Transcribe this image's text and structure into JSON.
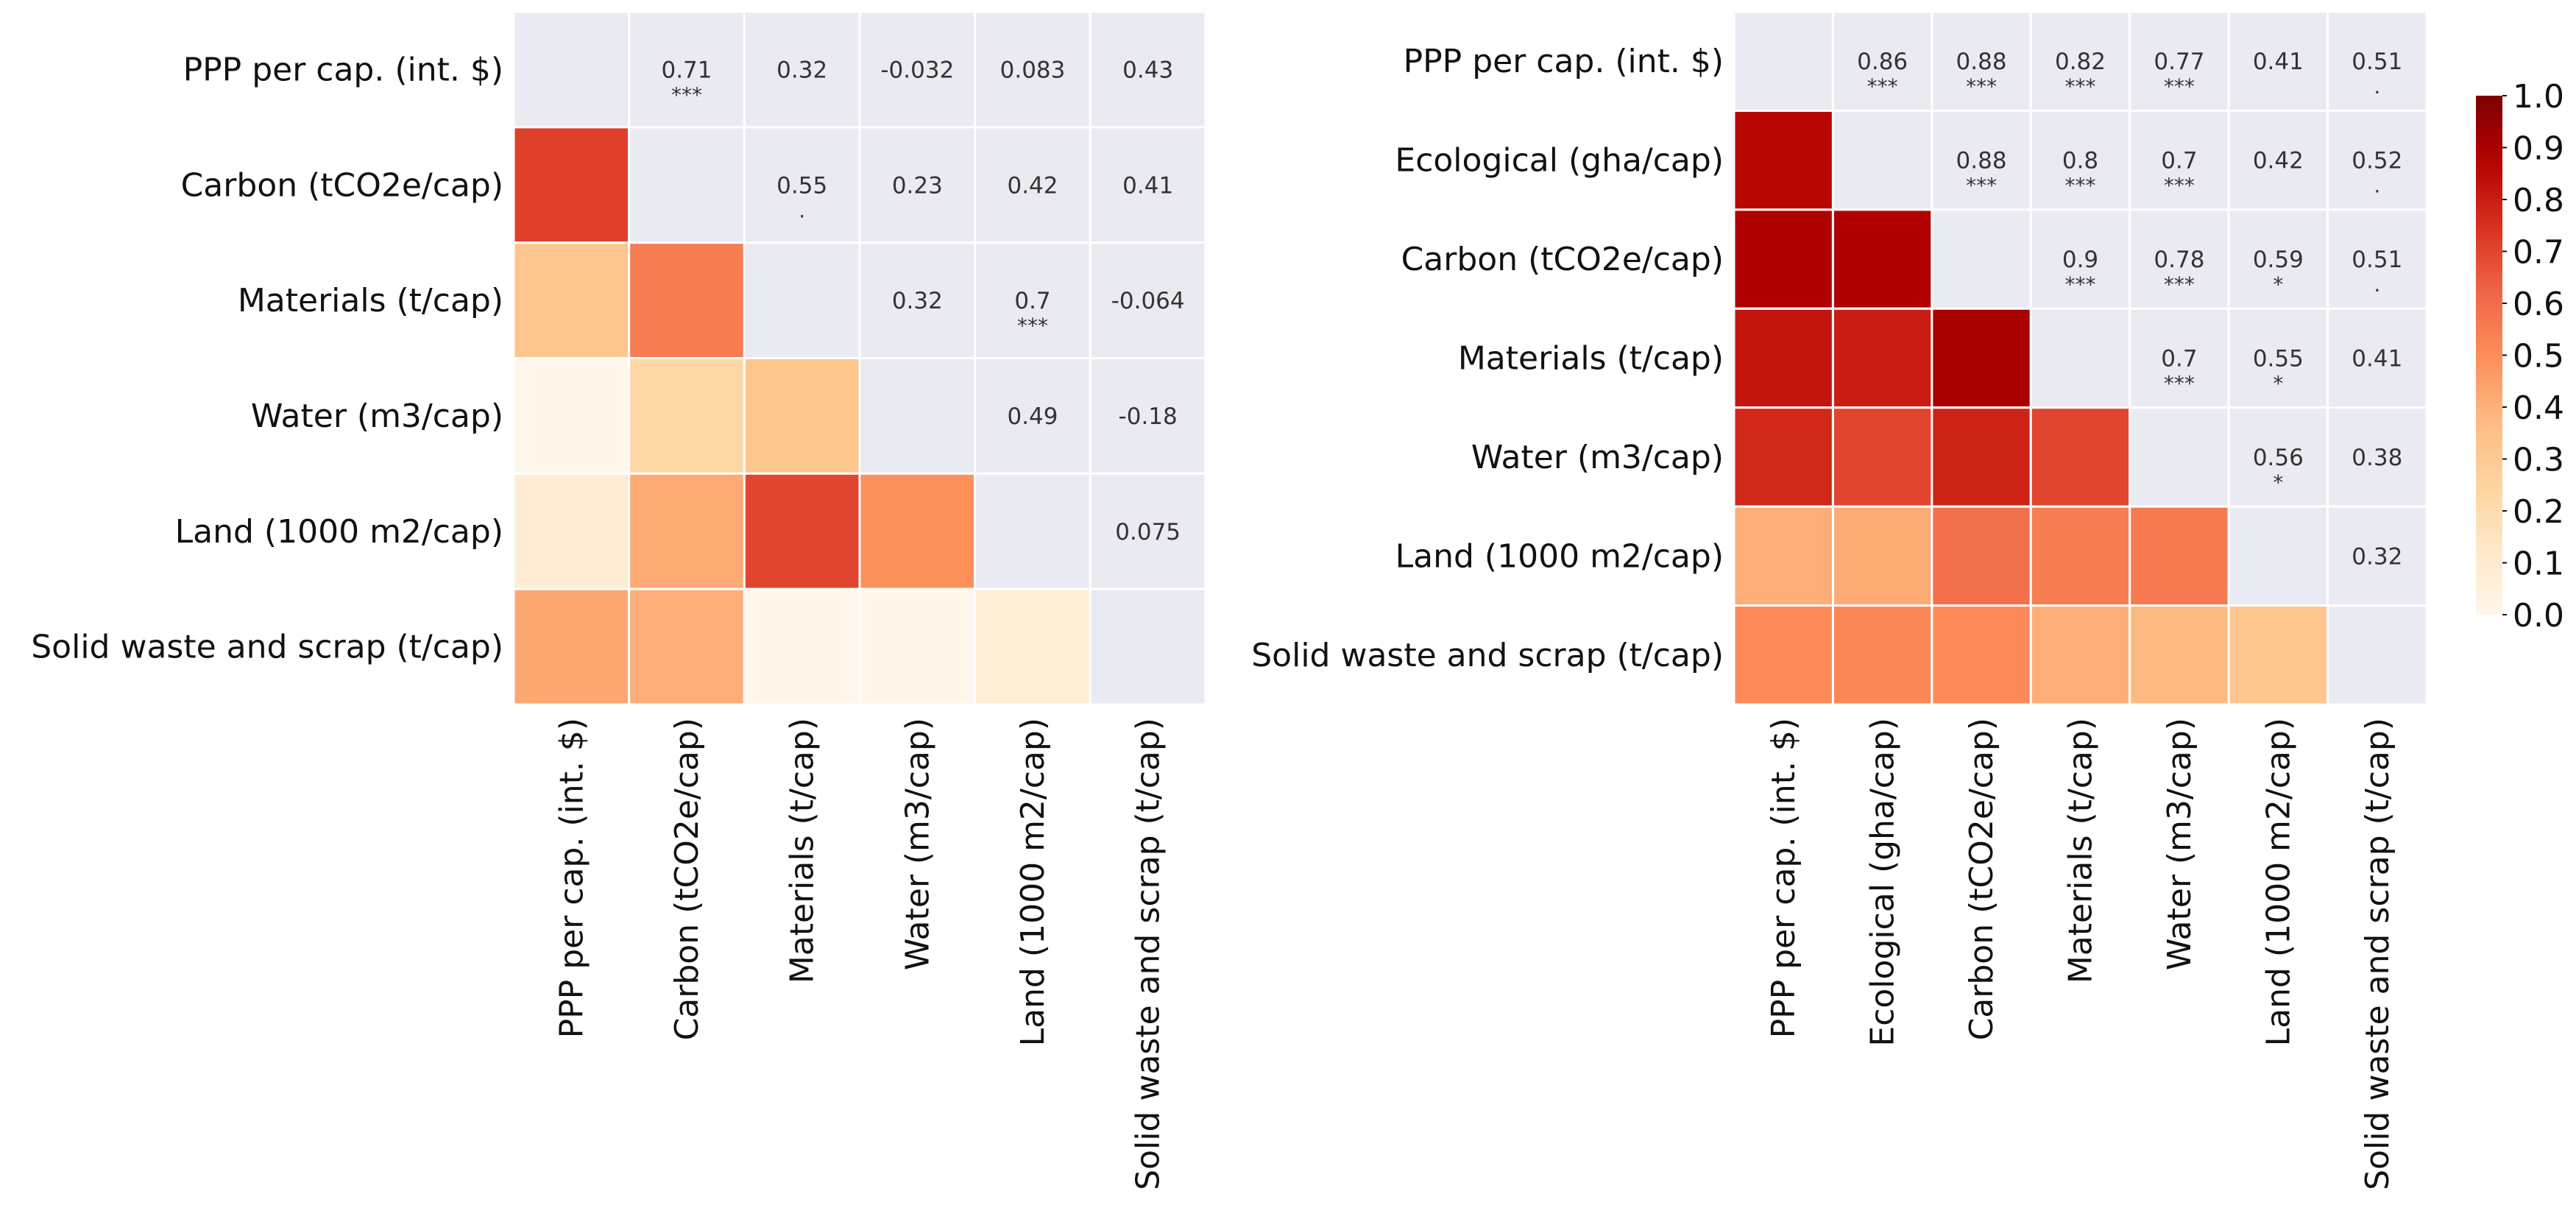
{
  "chart_data": [
    {
      "type": "heatmap",
      "title": "",
      "labels": [
        "PPP per cap. (int. $)",
        "Carbon (tCO2e/cap)",
        "Materials (t/cap)",
        "Water (m3/cap)",
        "Land (1000 m2/cap)",
        "Solid waste and scrap (t/cap)"
      ],
      "matrix": [
        [
          null,
          0.71,
          0.32,
          -0.032,
          0.083,
          0.43
        ],
        [
          0.71,
          null,
          0.55,
          0.23,
          0.42,
          0.41
        ],
        [
          0.32,
          0.55,
          null,
          0.32,
          0.7,
          -0.064
        ],
        [
          -0.032,
          0.23,
          0.32,
          null,
          0.49,
          -0.18
        ],
        [
          0.083,
          0.42,
          0.7,
          0.49,
          null,
          0.075
        ],
        [
          0.43,
          0.41,
          -0.064,
          -0.18,
          0.075,
          null
        ]
      ],
      "significance": [
        [
          "",
          "***",
          "",
          "",
          "",
          ""
        ],
        [
          "",
          "",
          ".",
          "",
          "",
          ""
        ],
        [
          "",
          "",
          "",
          "",
          "***",
          ""
        ],
        [
          "",
          "",
          "",
          "",
          "",
          ""
        ],
        [
          "",
          "",
          "",
          "",
          "",
          ""
        ],
        [
          "",
          "",
          "",
          "",
          "",
          ""
        ]
      ],
      "upper_triangle": "annotated values with significance markers on grey background",
      "lower_triangle": "colored by correlation value",
      "color_range": [
        0.0,
        1.0
      ]
    },
    {
      "type": "heatmap",
      "title": "",
      "labels": [
        "PPP per cap. (int. $)",
        "Ecological (gha/cap)",
        "Carbon (tCO2e/cap)",
        "Materials (t/cap)",
        "Water (m3/cap)",
        "Land (1000 m2/cap)",
        "Solid waste and scrap (t/cap)"
      ],
      "matrix": [
        [
          null,
          0.86,
          0.88,
          0.82,
          0.77,
          0.41,
          0.51
        ],
        [
          0.86,
          null,
          0.88,
          0.8,
          0.7,
          0.42,
          0.52
        ],
        [
          0.88,
          0.88,
          null,
          0.9,
          0.78,
          0.59,
          0.51
        ],
        [
          0.82,
          0.8,
          0.9,
          null,
          0.7,
          0.55,
          0.41
        ],
        [
          0.77,
          0.7,
          0.78,
          0.7,
          null,
          0.56,
          0.38
        ],
        [
          0.41,
          0.42,
          0.59,
          0.55,
          0.56,
          null,
          0.32
        ],
        [
          0.51,
          0.52,
          0.51,
          0.41,
          0.38,
          0.32,
          null
        ]
      ],
      "significance": [
        [
          "",
          "***",
          "***",
          "***",
          "***",
          "",
          "."
        ],
        [
          "",
          "",
          "***",
          "***",
          "***",
          "",
          "."
        ],
        [
          "",
          "",
          "",
          "***",
          "***",
          "*",
          "."
        ],
        [
          "",
          "",
          "",
          "",
          "***",
          "*",
          ""
        ],
        [
          "",
          "",
          "",
          "",
          "",
          "*",
          ""
        ],
        [
          "",
          "",
          "",
          "",
          "",
          "",
          ""
        ],
        [
          "",
          "",
          "",
          "",
          "",
          "",
          ""
        ]
      ],
      "upper_triangle": "annotated values with significance markers on grey background",
      "lower_triangle": "colored by correlation value",
      "color_range": [
        0.0,
        1.0
      ]
    }
  ],
  "colorbar": {
    "ticks": [
      "0.0",
      "0.1",
      "0.2",
      "0.3",
      "0.4",
      "0.5",
      "0.6",
      "0.7",
      "0.8",
      "0.9",
      "1.0"
    ],
    "range": [
      0.0,
      1.0
    ],
    "colormap": "OrRd"
  },
  "colors": {
    "grid_background": "#eaeaf2",
    "cell_border": "#ffffff",
    "text": "#333333"
  }
}
